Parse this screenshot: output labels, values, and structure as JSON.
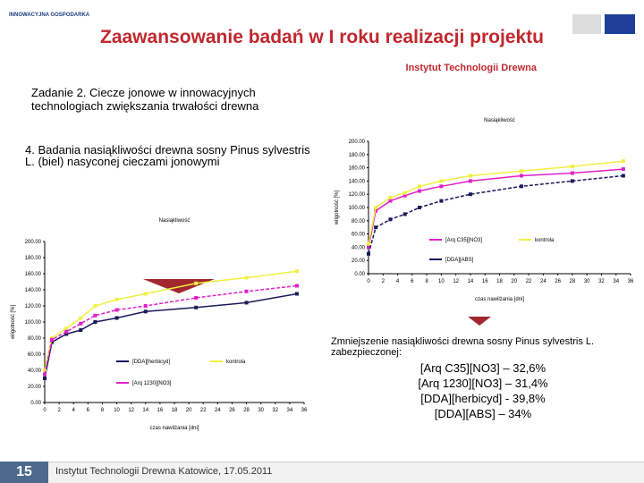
{
  "logo": "INNOWACYJNA GOSPODARKA",
  "title": "Zaawansowanie badań w I roku realizacji projektu",
  "institute": "Instytut Technologii Drewna",
  "task": "Zadanie 2. Ciecze jonowe w innowacyjnych technologiach zwiększania trwałości drewna",
  "point": "4. Badania nasiąkliwości drewna sosny Pinus sylvestris L. (biel) nasyconej cieczami jonowymi",
  "reduction": "Zmniejszenie nasiąkliwości drewna sosny Pinus sylvestris L. zabezpieczonej:",
  "results": [
    "[Arq C35][NO3] – 32,6%",
    "[Arq 1230][NO3] – 31,4%",
    "[DDA][herbicyd] - 39,8%",
    "[DDA][ABS] – 34%"
  ],
  "footer": {
    "page": "15",
    "text": "Instytut Technologii Drewna Katowice, 17.05.2011"
  },
  "chart_data": [
    {
      "type": "line",
      "title": "Nasiąkliwość",
      "y_label": "wilgotność [%]",
      "x_label": "czas nawilżania [dni]",
      "x": [
        0,
        1,
        3,
        5,
        7,
        10,
        14,
        21,
        28,
        35
      ],
      "xlim": [
        0,
        36
      ],
      "xticks": [
        0,
        2,
        4,
        6,
        8,
        10,
        12,
        14,
        16,
        18,
        20,
        22,
        24,
        26,
        28,
        30,
        32,
        34,
        36
      ],
      "ylim": [
        0,
        200
      ],
      "yticks": [
        {
          "value": 0,
          "label": "0.00"
        },
        {
          "value": 20,
          "label": "20.00"
        },
        {
          "value": 40,
          "label": "40.00"
        },
        {
          "value": 60,
          "label": "60.00"
        },
        {
          "value": 80,
          "label": "80.00"
        },
        {
          "value": 100,
          "label": "100.00"
        },
        {
          "value": 120,
          "label": "120.00"
        },
        {
          "value": 140,
          "label": "140.00"
        },
        {
          "value": 160,
          "label": "160.00"
        },
        {
          "value": 180,
          "label": "180.00"
        },
        {
          "value": 200,
          "label": "200.00"
        }
      ],
      "series": [
        {
          "name": "[Arq C35][NO3]",
          "color": "#e020c8",
          "values": [
            40,
            95,
            110,
            118,
            125,
            132,
            140,
            148,
            152,
            158
          ]
        },
        {
          "name": "kontrola",
          "color": "#f0f040",
          "values": [
            45,
            100,
            115,
            122,
            132,
            140,
            148,
            155,
            162,
            170
          ]
        },
        {
          "name": "[DDA][ABS]",
          "color": "#1a1a5c",
          "values": [
            30,
            70,
            82,
            90,
            100,
            110,
            120,
            132,
            140,
            148
          ]
        }
      ]
    },
    {
      "type": "line",
      "title": "Nasiąkliwość",
      "y_label": "wilgotność [%]",
      "x_label": "czas nawilżania [dni]",
      "x": [
        0,
        1,
        3,
        5,
        7,
        10,
        14,
        21,
        28,
        35
      ],
      "xlim": [
        0,
        36
      ],
      "xticks": [
        0,
        2,
        4,
        6,
        8,
        10,
        12,
        14,
        16,
        18,
        20,
        22,
        24,
        26,
        28,
        30,
        32,
        34,
        36
      ],
      "ylim": [
        0,
        200
      ],
      "yticks": [
        {
          "value": 0,
          "label": "0.00"
        },
        {
          "value": 20,
          "label": "20.00"
        },
        {
          "value": 40,
          "label": "40.00"
        },
        {
          "value": 60,
          "label": "60.00"
        },
        {
          "value": 80,
          "label": "80.00"
        },
        {
          "value": 100,
          "label": "100.00"
        },
        {
          "value": 120,
          "label": "120.00"
        },
        {
          "value": 140,
          "label": "140.00"
        },
        {
          "value": 160,
          "label": "160.00"
        },
        {
          "value": 180,
          "label": "180.00"
        },
        {
          "value": 200,
          "label": "200.00"
        }
      ],
      "series": [
        {
          "name": "[DDA][herbicyd]",
          "color": "#1a1a5c",
          "values": [
            30,
            75,
            85,
            90,
            100,
            105,
            113,
            118,
            124,
            135
          ]
        },
        {
          "name": "kontrola",
          "color": "#f0f040",
          "values": [
            40,
            80,
            92,
            105,
            120,
            128,
            135,
            148,
            155,
            163
          ]
        },
        {
          "name": "[Arq 1230][NO3]",
          "color": "#e020c8",
          "values": [
            35,
            78,
            88,
            98,
            108,
            115,
            120,
            130,
            138,
            145
          ]
        }
      ]
    }
  ]
}
